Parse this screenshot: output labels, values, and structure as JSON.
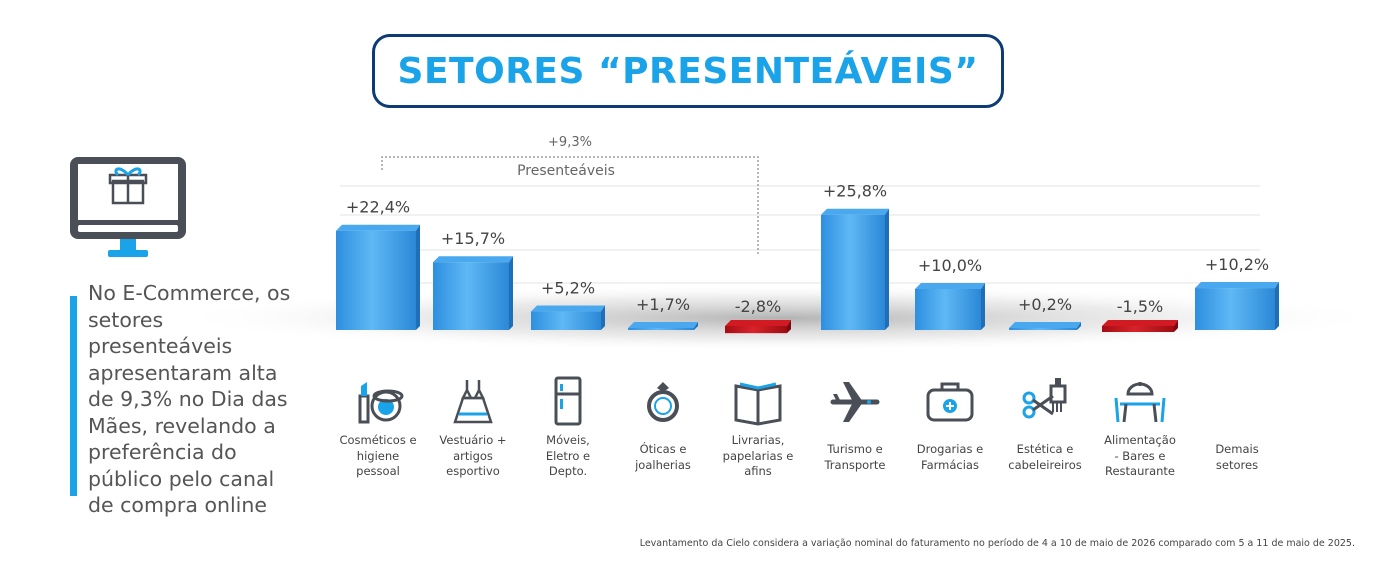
{
  "title": "SETORES “PRESENTEÁVEIS”",
  "side_text": "No E-Commerce, os setores presenteáveis apresentaram alta de 9,3% no Dia das Mães, revelando a preferência do público pelo canal de compra online",
  "group_bracket": {
    "label": "Presenteáveis",
    "value_label": "+9,3%"
  },
  "footnote": "Levantamento da Cielo considera a variação nominal do faturamento no período de 4 a 10 de maio de 2026 comparado com 5 a 11 de maio de 2025.",
  "colors": {
    "accent": "#1aa3e8",
    "positive": "#3fa6ec",
    "negative": "#c0121a",
    "title_border": "#0d3b73",
    "icon": "#4a4f57"
  },
  "chart_data": {
    "type": "bar",
    "title": "SETORES “PRESENTEÁVEIS”",
    "categories": [
      "Cosméticos e higiene pessoal",
      "Vestuário + artigos esportivo",
      "Móveis, Eletro e Depto.",
      "Óticas e joalherias",
      "Livrarias, papelarias e afins",
      "Turismo e Transporte",
      "Drogarias e Farmácias",
      "Estética e cabeleireiros",
      "Alimentação - Bares e Restaurante",
      "Demais setores"
    ],
    "category_lines": [
      [
        "Cosméticos e",
        "higiene",
        "pessoal"
      ],
      [
        "Vestuário +",
        "artigos",
        "esportivo"
      ],
      [
        "Móveis,",
        "Eletro e",
        "Depto."
      ],
      [
        "Óticas e",
        "joalherias"
      ],
      [
        "Livrarias,",
        "papelarias e",
        "afins"
      ],
      [
        "Turismo e",
        "Transporte"
      ],
      [
        "Drogarias e",
        "Farmácias"
      ],
      [
        "Estética e",
        "cabeleireiros"
      ],
      [
        "Alimentação",
        "- Bares e",
        "Restaurante"
      ],
      [
        "Demais",
        "setores"
      ]
    ],
    "values": [
      22.4,
      15.7,
      5.2,
      1.7,
      -2.8,
      25.8,
      10.0,
      0.2,
      -1.5,
      10.2
    ],
    "value_labels": [
      "+22,4%",
      "+15,7%",
      "+5,2%",
      "+1,7%",
      "-2,8%",
      "+25,8%",
      "+10,0%",
      "+0,2%",
      "-1,5%",
      "+10,2%"
    ],
    "icons": [
      "cosmetics-icon",
      "dress-icon",
      "fridge-icon",
      "ring-icon",
      "book-icon",
      "airplane-icon",
      "medical-bag-icon",
      "scissors-comb-icon",
      "dining-table-icon",
      ""
    ],
    "grid": true
  }
}
